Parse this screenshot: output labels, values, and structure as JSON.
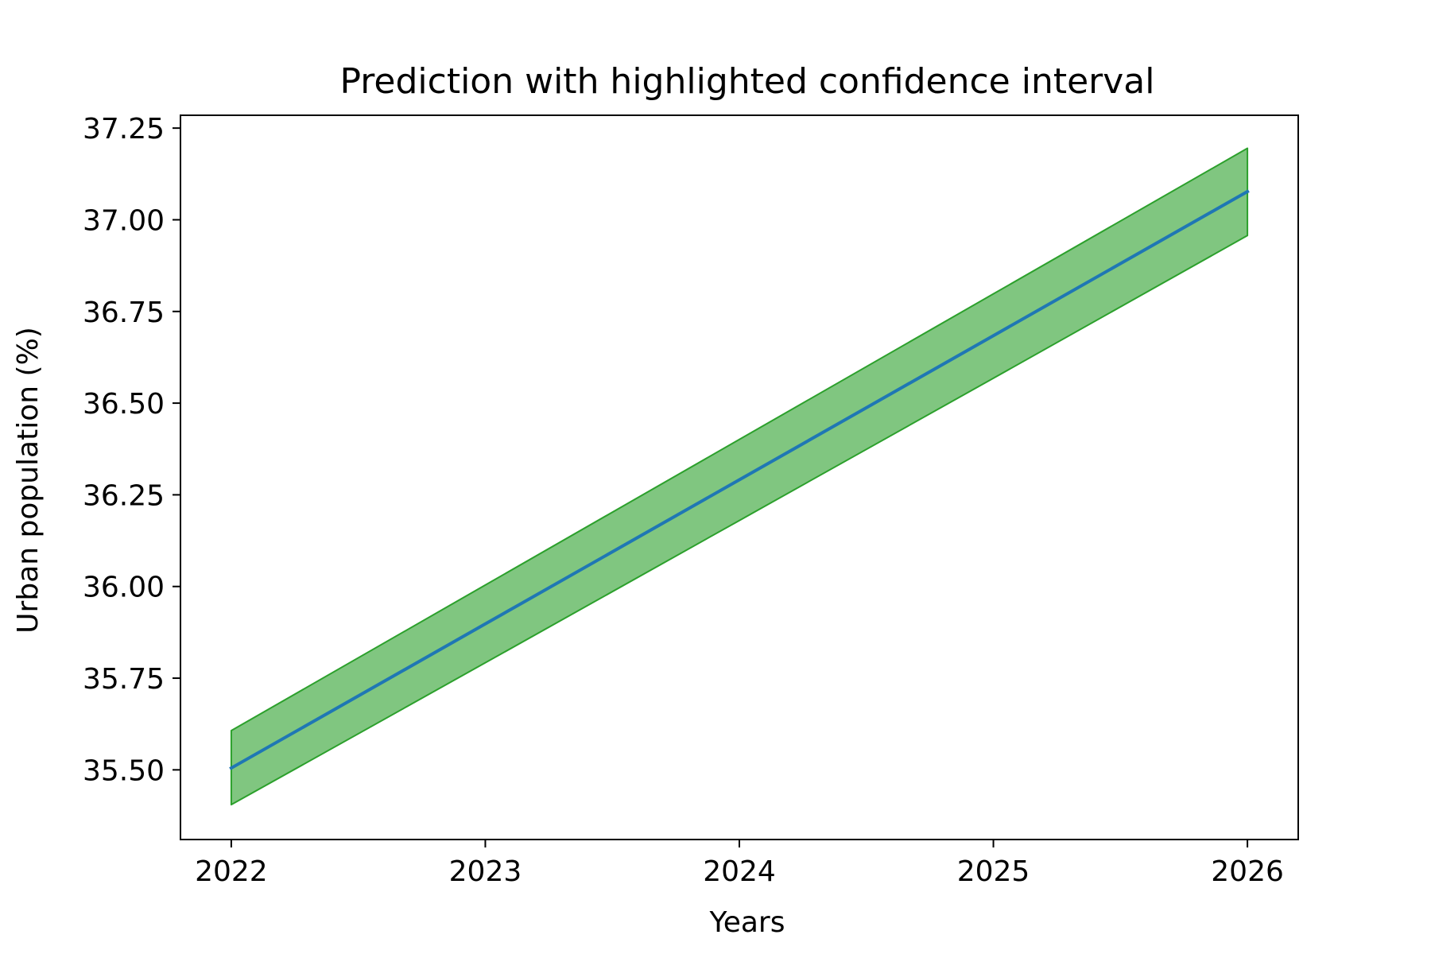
{
  "chart_data": {
    "type": "line",
    "title": "Prediction with highlighted confidence interval",
    "xlabel": "Years",
    "ylabel": "Urban population (%)",
    "x": [
      2022,
      2023,
      2024,
      2025,
      2026
    ],
    "xlim": [
      2021.8,
      2026.2
    ],
    "ylim": [
      35.31,
      37.285
    ],
    "xticks": [
      2022,
      2023,
      2024,
      2025,
      2026
    ],
    "xtick_labels": [
      "2022",
      "2023",
      "2024",
      "2025",
      "2026"
    ],
    "yticks": [
      35.5,
      35.75,
      36.0,
      36.25,
      36.5,
      36.75,
      37.0,
      37.25
    ],
    "ytick_labels": [
      "35.50",
      "35.75",
      "36.00",
      "36.25",
      "36.50",
      "36.75",
      "37.00",
      "37.25"
    ],
    "grid": false,
    "series": [
      {
        "values": [
          35.505,
          35.898,
          36.291,
          36.684,
          37.077
        ],
        "color": "#1f77b4"
      }
    ],
    "confidence_band": {
      "lower": [
        35.405,
        35.792,
        36.18,
        36.568,
        36.957
      ],
      "upper": [
        35.607,
        36.004,
        36.401,
        36.798,
        37.195
      ],
      "color": "#2ca02c",
      "opacity": 0.6
    }
  }
}
